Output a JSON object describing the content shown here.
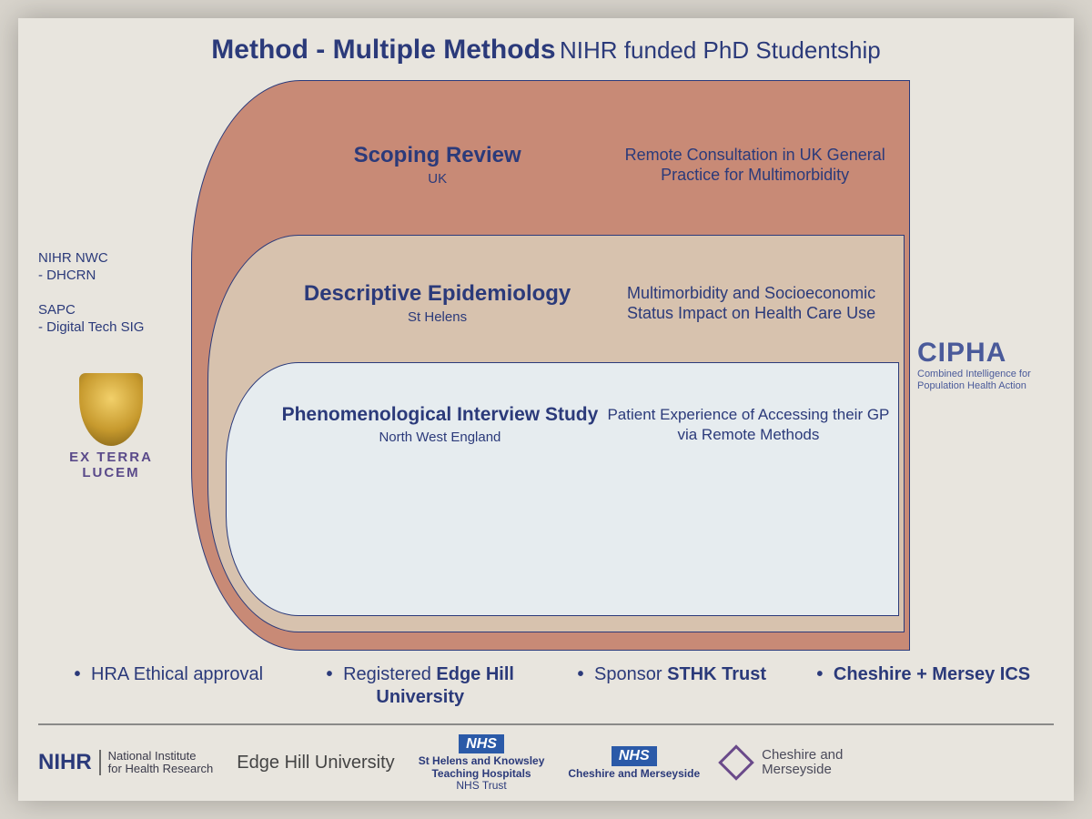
{
  "title": {
    "main": "Method - Multiple Methods",
    "sub": " NIHR funded PhD Studentship"
  },
  "left": {
    "note1_a": "NIHR NWC",
    "note1_b": "- DHCRN",
    "note2_a": "SAPC",
    "note2_b": "- Digital Tech SIG",
    "exterra": "EX TERRA LUCEM"
  },
  "layers": {
    "outer": {
      "title": "Scoping Review",
      "loc": "UK",
      "desc": "Remote Consultation in UK General Practice for Multimorbidity",
      "bg": "#c88a76"
    },
    "mid": {
      "title": "Descriptive Epidemiology",
      "loc": "St Helens",
      "desc": "Multimorbidity and Socioeconomic Status Impact on Health Care Use",
      "bg": "#d7c2ae"
    },
    "inner": {
      "title": "Phenomenological Interview Study",
      "loc": "North West England",
      "desc": "Patient Experience of Accessing their GP via Remote Methods",
      "bg": "#e6ecef"
    }
  },
  "right": {
    "cipha": "CIPHA",
    "cipha_sub": "Combined Intelligence for Population Health Action"
  },
  "bullets": {
    "b1_plain": "HRA Ethical approval",
    "b1_bold": "",
    "b2_plain": "Registered ",
    "b2_bold": "Edge Hill University",
    "b3_plain": "Sponsor ",
    "b3_bold": "STHK Trust",
    "b4_plain": "",
    "b4_bold": "Cheshire + Mersey ICS"
  },
  "footer": {
    "nihr": "NIHR",
    "nihr_text1": "National Institute",
    "nihr_text2": "for Health Research",
    "edgehill": "Edge Hill University",
    "nhs": "NHS",
    "nhs1a": "St Helens and Knowsley",
    "nhs1b": "Teaching Hospitals",
    "nhs1c": "NHS Trust",
    "nhs2": "Cheshire and Merseyside",
    "cm1": "Cheshire and",
    "cm2": "Merseyside"
  },
  "colors": {
    "text": "#2b3a7a",
    "border": "#2b3a7a"
  }
}
